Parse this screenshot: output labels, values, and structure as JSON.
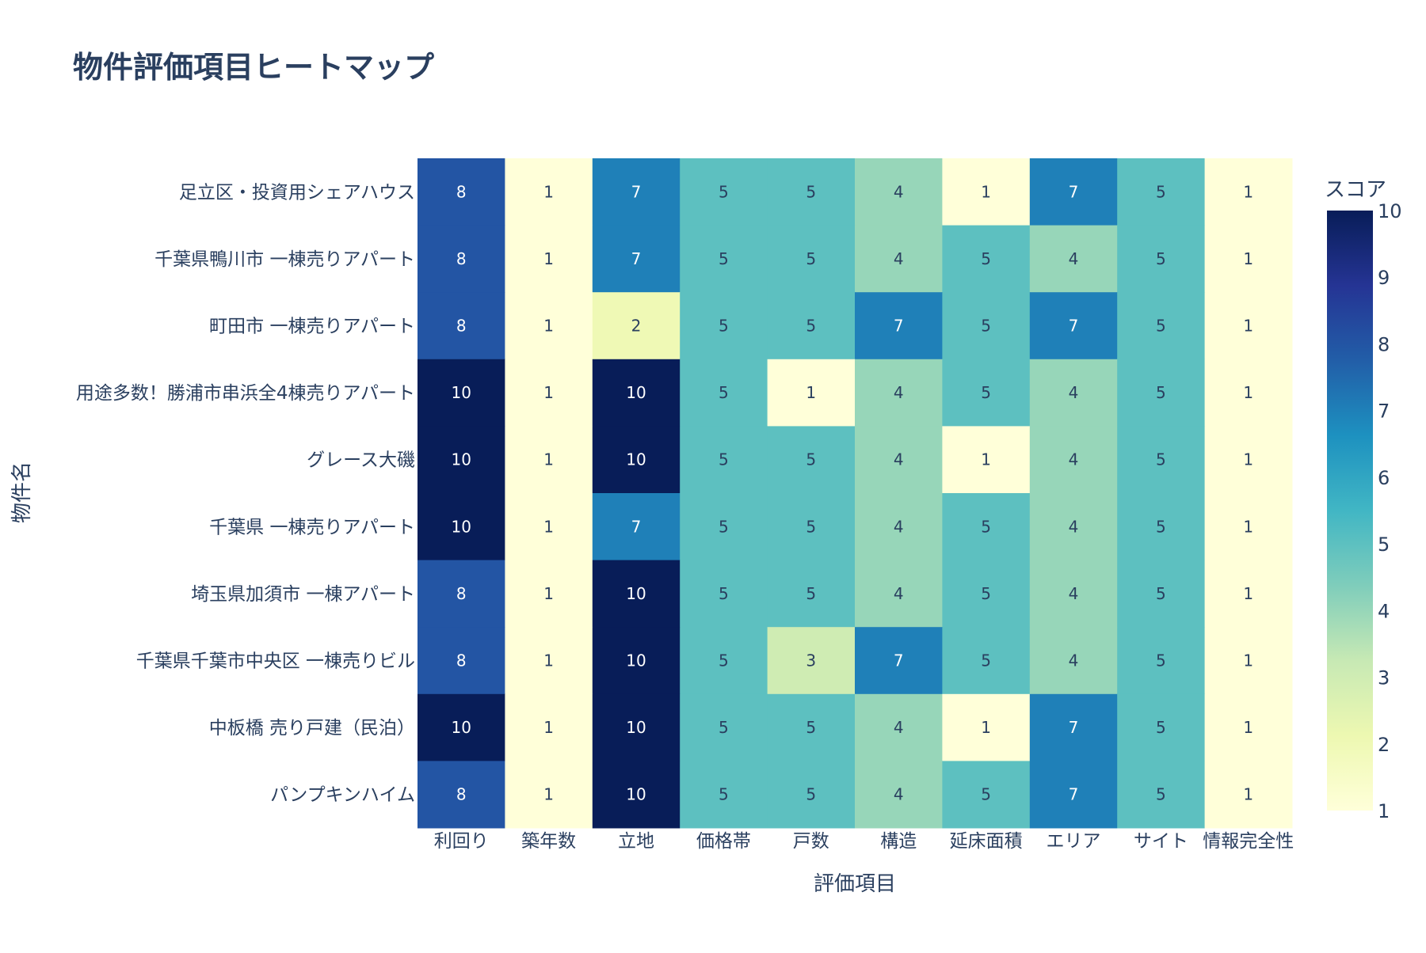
{
  "chart_data": {
    "type": "heatmap",
    "title": "物件評価項目ヒートマップ",
    "xlabel": "評価項目",
    "ylabel": "物件名",
    "x_categories": [
      "利回り",
      "築年数",
      "立地",
      "価格帯",
      "戸数",
      "構造",
      "延床面積",
      "エリア",
      "サイト",
      "情報完全性"
    ],
    "y_categories": [
      "足立区・投資用シェアハウス",
      "千葉県鴨川市 一棟売りアパート",
      "町田市 一棟売りアパート",
      "用途多数！勝浦市串浜全4棟売りアパート",
      "グレース大磯",
      "千葉県 一棟売りアパート",
      "埼玉県加須市 一棟アパート",
      "千葉県千葉市中央区 一棟売りビル",
      "中板橋 売り戸建（民泊）",
      "パンプキンハイム"
    ],
    "values": [
      [
        8,
        1,
        7,
        5,
        5,
        4,
        1,
        7,
        5,
        1
      ],
      [
        8,
        1,
        7,
        5,
        5,
        4,
        5,
        4,
        5,
        1
      ],
      [
        8,
        1,
        2,
        5,
        5,
        7,
        5,
        7,
        5,
        1
      ],
      [
        10,
        1,
        10,
        5,
        1,
        4,
        5,
        4,
        5,
        1
      ],
      [
        10,
        1,
        10,
        5,
        5,
        4,
        1,
        4,
        5,
        1
      ],
      [
        10,
        1,
        7,
        5,
        5,
        4,
        5,
        4,
        5,
        1
      ],
      [
        8,
        1,
        10,
        5,
        5,
        4,
        5,
        4,
        5,
        1
      ],
      [
        8,
        1,
        10,
        5,
        3,
        7,
        5,
        4,
        5,
        1
      ],
      [
        10,
        1,
        10,
        5,
        5,
        4,
        1,
        7,
        5,
        1
      ],
      [
        8,
        1,
        10,
        5,
        5,
        4,
        5,
        7,
        5,
        1
      ]
    ],
    "colorbar": {
      "title": "スコア",
      "range": [
        1,
        10
      ],
      "ticks": [
        1,
        2,
        3,
        4,
        5,
        6,
        7,
        8,
        9,
        10
      ],
      "colorscale": "YlGnBu"
    }
  }
}
